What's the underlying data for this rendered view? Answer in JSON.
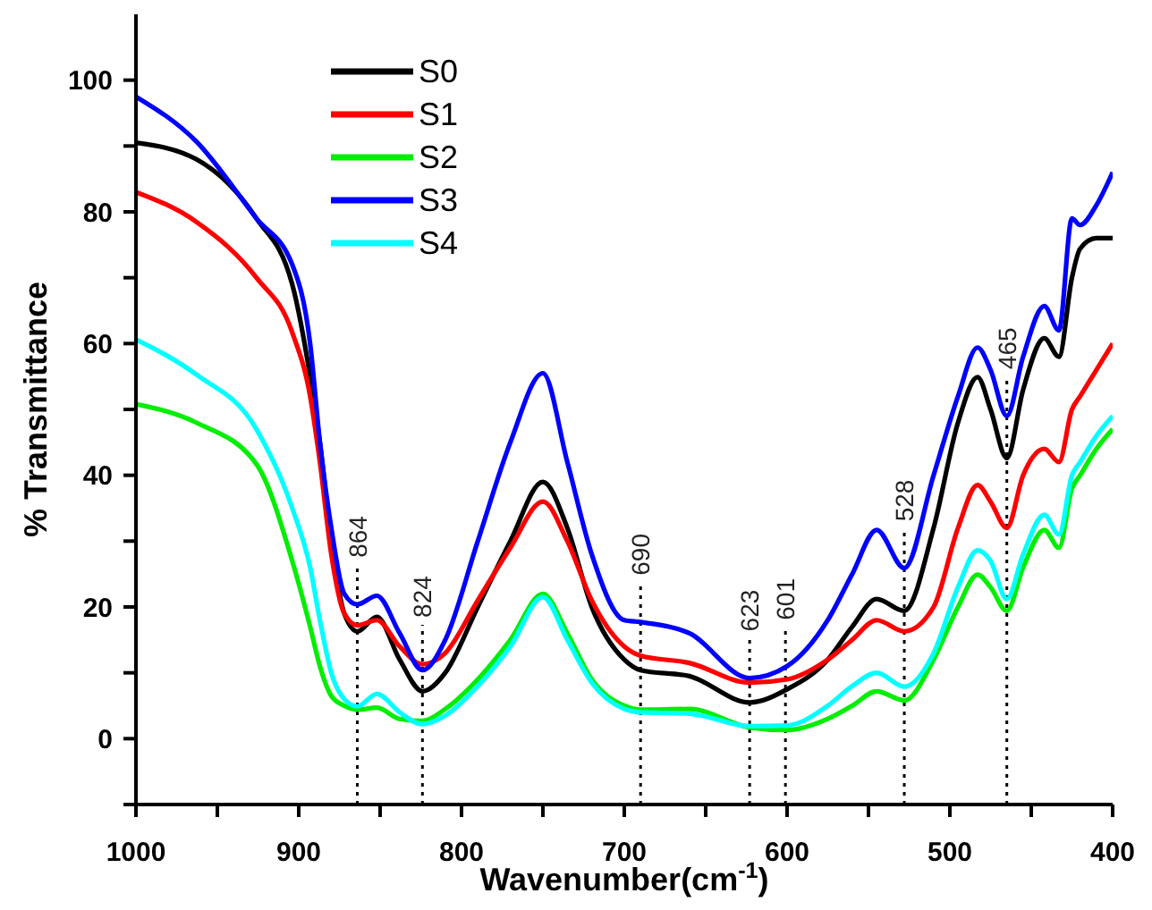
{
  "chart_data": {
    "type": "line",
    "xlabel": "Wavenumber(cm$^{-1}$)",
    "ylabel": "% Transmittance",
    "x": [
      1000,
      963,
      926,
      904,
      893,
      887,
      880,
      872,
      864,
      852,
      838,
      824,
      810,
      790,
      770,
      750,
      735,
      720,
      700,
      690,
      660,
      623,
      600,
      575,
      560,
      545,
      528,
      510,
      495,
      483,
      475,
      465,
      455,
      442,
      433,
      425,
      420,
      410,
      400
    ],
    "series": [
      {
        "name": "S0",
        "color": "#000000",
        "values": [
          90.5,
          88,
          79,
          69,
          55,
          45,
          30,
          19,
          16.3,
          18.5,
          12,
          7.2,
          10,
          20,
          30,
          39,
          32,
          20,
          12,
          10.4,
          9.5,
          5.5,
          7.5,
          12,
          17,
          21.2,
          19.4,
          32,
          48,
          54.9,
          50,
          42.6,
          53,
          60.8,
          58,
          70,
          74.4,
          76,
          76
        ]
      },
      {
        "name": "S1",
        "color": "#ff0000",
        "values": [
          83,
          78.5,
          70,
          61.7,
          52,
          42,
          28,
          19,
          17.2,
          18,
          14,
          11.3,
          13,
          21,
          29,
          36,
          30,
          21,
          14,
          12.6,
          11.5,
          8.5,
          9,
          12,
          15,
          18,
          16.3,
          20,
          32,
          38.5,
          36,
          32,
          40,
          44,
          42,
          50,
          52,
          56,
          60
        ]
      },
      {
        "name": "S2",
        "color": "#00ee00",
        "values": [
          50.8,
          48,
          41.7,
          27,
          17,
          11,
          6.5,
          5,
          4.4,
          4.7,
          3,
          2.7,
          4.5,
          9,
          15,
          22,
          16,
          9,
          5,
          4.4,
          4.5,
          1.7,
          1.3,
          3,
          5,
          7.2,
          5.8,
          12,
          20,
          24.9,
          23,
          19.4,
          26,
          31.7,
          29,
          38,
          40,
          44,
          47
        ]
      },
      {
        "name": "S3",
        "color": "#0000ff",
        "values": [
          97.5,
          90.7,
          79,
          72,
          60,
          45,
          32,
          22,
          20.4,
          21.7,
          16,
          10.4,
          15,
          30,
          45,
          55.5,
          42,
          28,
          18,
          17.7,
          16,
          9.2,
          11,
          18,
          25,
          31.7,
          25.9,
          40,
          52,
          59.4,
          56,
          49,
          58,
          65.7,
          62,
          79,
          78,
          81,
          86
        ]
      },
      {
        "name": "S4",
        "color": "#00ffff",
        "values": [
          60.6,
          55.3,
          47,
          35,
          26,
          18,
          10,
          6,
          4.9,
          6.8,
          4,
          2.2,
          3.5,
          8,
          14,
          21.5,
          15,
          8.5,
          4.5,
          4,
          3.8,
          1.9,
          2,
          5,
          8,
          10,
          7.9,
          13,
          23,
          28.6,
          27,
          21.2,
          28,
          34,
          31,
          40,
          42,
          46,
          49
        ]
      }
    ],
    "xlim": [
      1000,
      400
    ],
    "xticks": [
      1000,
      {
        "value": 950,
        "label": null
      },
      900,
      {
        "value": 850,
        "label": null
      },
      800,
      {
        "value": 750,
        "label": null
      },
      700,
      {
        "value": 650,
        "label": null
      },
      600,
      {
        "value": 550,
        "label": null
      },
      500,
      {
        "value": 450,
        "label": null
      },
      400
    ],
    "ylim": [
      -10,
      110
    ],
    "yticks": [
      {
        "value": -10,
        "label": null
      },
      0,
      {
        "value": 10,
        "label": null
      },
      20,
      {
        "value": 30,
        "label": null
      },
      40,
      {
        "value": 50,
        "label": null
      },
      60,
      {
        "value": 70,
        "label": null
      },
      80,
      {
        "value": 90,
        "label": null
      },
      100
    ],
    "ref_lines": [
      {
        "axis": "x",
        "value": 864,
        "label": "864",
        "line_style": "dotted",
        "color": "#000000"
      },
      {
        "axis": "x",
        "value": 824,
        "label": "824",
        "line_style": "dotted",
        "color": "#000000"
      },
      {
        "axis": "x",
        "value": 690,
        "label": "690",
        "line_style": "dotted",
        "color": "#000000"
      },
      {
        "axis": "x",
        "value": 623,
        "label": "623",
        "line_style": "dotted",
        "color": "#000000"
      },
      {
        "axis": "x",
        "value": 601,
        "label": "601",
        "line_style": "dotted",
        "color": "#000000"
      },
      {
        "axis": "x",
        "value": 528,
        "label": "528",
        "line_style": "dotted",
        "color": "#000000"
      },
      {
        "axis": "x",
        "value": 465,
        "label": "465",
        "line_style": "dotted",
        "color": "#000000"
      }
    ],
    "legend": "top left",
    "grid": false,
    "marker": "none",
    "line_style": "solid"
  }
}
